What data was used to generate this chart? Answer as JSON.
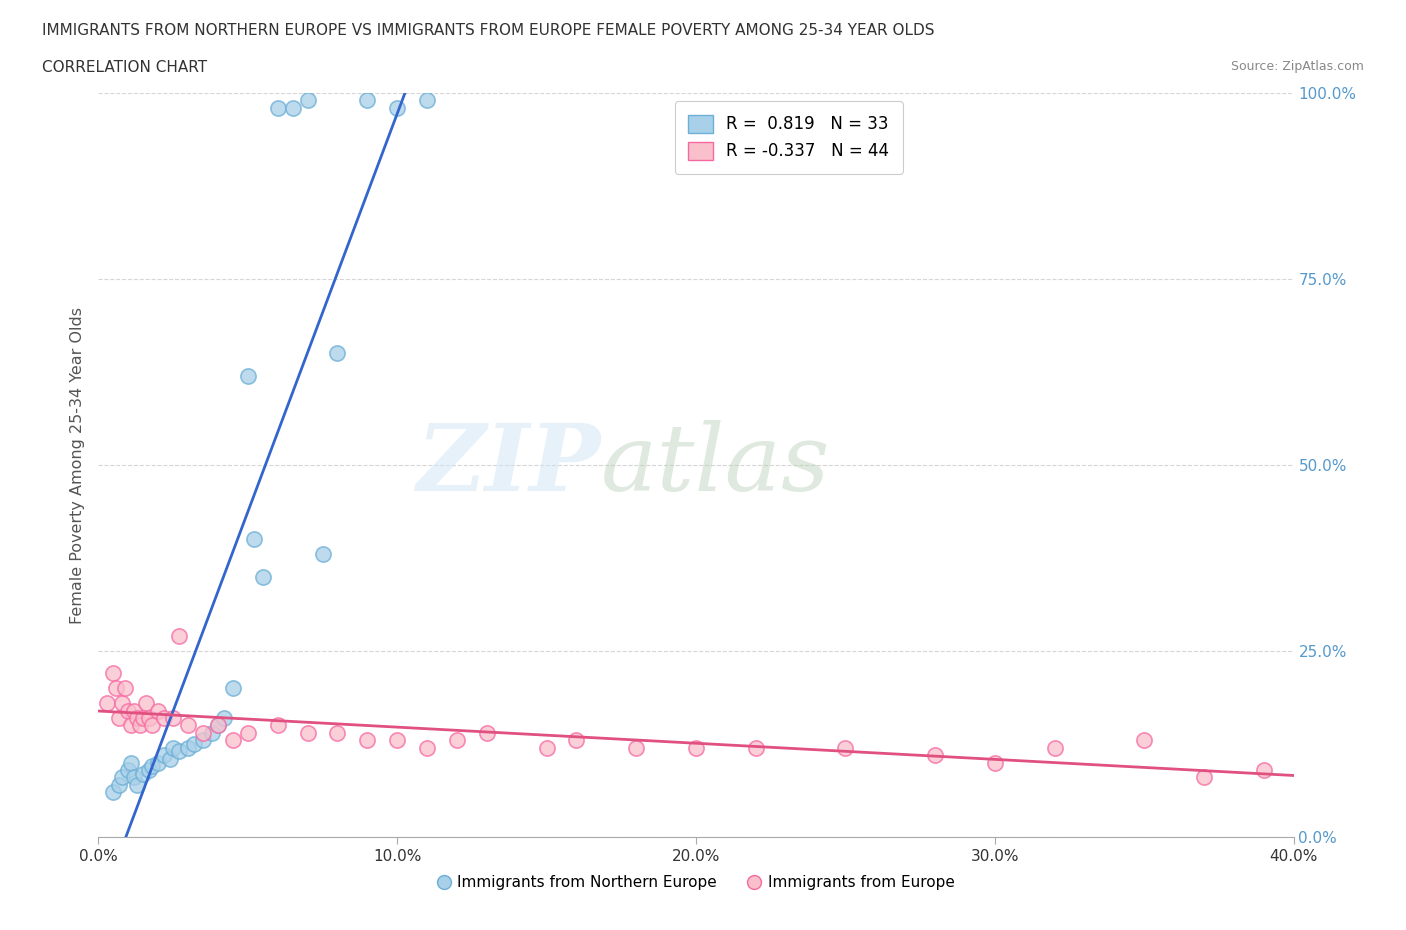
{
  "title": "IMMIGRANTS FROM NORTHERN EUROPE VS IMMIGRANTS FROM EUROPE FEMALE POVERTY AMONG 25-34 YEAR OLDS",
  "subtitle": "CORRELATION CHART",
  "source": "Source: ZipAtlas.com",
  "ylabel": "Female Poverty Among 25-34 Year Olds",
  "watermark_zip": "ZIP",
  "watermark_atlas": "atlas",
  "xlim": [
    0.0,
    0.4
  ],
  "ylim": [
    0.0,
    1.0
  ],
  "yticks": [
    0.0,
    0.25,
    0.5,
    0.75,
    1.0
  ],
  "xticks": [
    0.0,
    0.1,
    0.2,
    0.3,
    0.4
  ],
  "blue_R": 0.819,
  "blue_N": 33,
  "pink_R": -0.337,
  "pink_N": 44,
  "legend_label_blue": "Immigrants from Northern Europe",
  "legend_label_pink": "Immigrants from Europe",
  "blue_color": "#a8d0e8",
  "blue_edge_color": "#6baed6",
  "pink_color": "#f9c0cc",
  "pink_edge_color": "#f768a1",
  "blue_line_color": "#3366cc",
  "pink_line_color": "#e05080",
  "background_color": "#ffffff",
  "grid_color": "#cccccc",
  "ytick_color": "#5599cc",
  "blue_scatter_x": [
    0.005,
    0.007,
    0.008,
    0.01,
    0.011,
    0.012,
    0.013,
    0.015,
    0.017,
    0.018,
    0.02,
    0.022,
    0.024,
    0.025,
    0.027,
    0.03,
    0.032,
    0.035,
    0.038,
    0.04,
    0.042,
    0.045,
    0.05,
    0.052,
    0.055,
    0.06,
    0.065,
    0.07,
    0.075,
    0.08,
    0.09,
    0.1,
    0.11
  ],
  "blue_scatter_y": [
    0.06,
    0.07,
    0.08,
    0.09,
    0.1,
    0.08,
    0.07,
    0.085,
    0.09,
    0.095,
    0.1,
    0.11,
    0.105,
    0.12,
    0.115,
    0.12,
    0.125,
    0.13,
    0.14,
    0.15,
    0.16,
    0.2,
    0.62,
    0.4,
    0.35,
    0.98,
    0.98,
    0.99,
    0.38,
    0.65,
    0.99,
    0.98,
    0.99
  ],
  "pink_scatter_x": [
    0.003,
    0.005,
    0.006,
    0.007,
    0.008,
    0.009,
    0.01,
    0.011,
    0.012,
    0.013,
    0.014,
    0.015,
    0.016,
    0.017,
    0.018,
    0.02,
    0.022,
    0.025,
    0.027,
    0.03,
    0.035,
    0.04,
    0.045,
    0.05,
    0.06,
    0.07,
    0.08,
    0.09,
    0.1,
    0.11,
    0.12,
    0.13,
    0.15,
    0.16,
    0.18,
    0.2,
    0.22,
    0.25,
    0.28,
    0.3,
    0.32,
    0.35,
    0.37,
    0.39
  ],
  "pink_scatter_y": [
    0.18,
    0.22,
    0.2,
    0.16,
    0.18,
    0.2,
    0.17,
    0.15,
    0.17,
    0.16,
    0.15,
    0.16,
    0.18,
    0.16,
    0.15,
    0.17,
    0.16,
    0.16,
    0.27,
    0.15,
    0.14,
    0.15,
    0.13,
    0.14,
    0.15,
    0.14,
    0.14,
    0.13,
    0.13,
    0.12,
    0.13,
    0.14,
    0.12,
    0.13,
    0.12,
    0.12,
    0.12,
    0.12,
    0.11,
    0.1,
    0.12,
    0.13,
    0.08,
    0.09
  ]
}
